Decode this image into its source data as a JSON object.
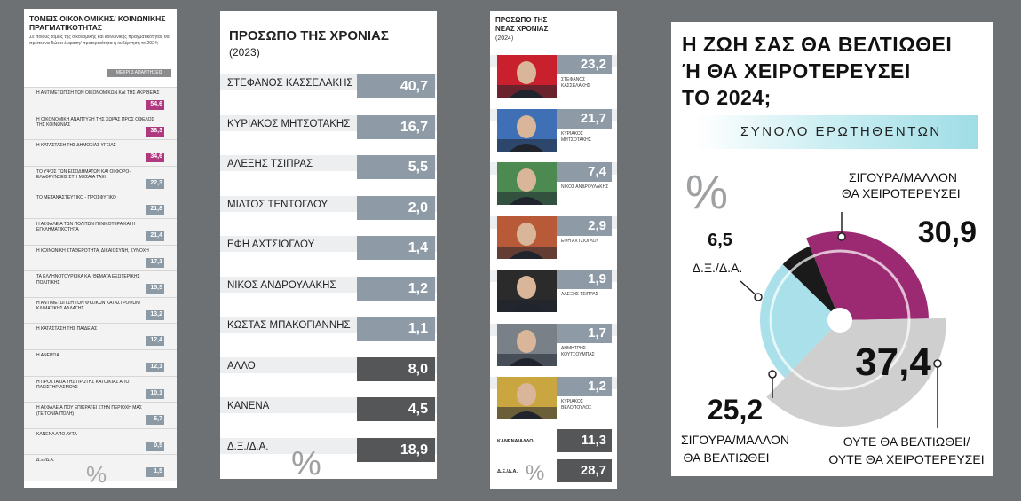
{
  "colors": {
    "magenta": "#9c2a73",
    "light_blue": "#a9e0ea",
    "gray": "#cfcfcf",
    "black": "#1a1a1a",
    "bar_blue": "#8e9ba7",
    "bar_dark": "#555658"
  },
  "panel1": {
    "title": "ΤΟΜΕΙΣ ΟΙΚΟΝΟΜΙΚΗΣ/ ΚΟΙΝΩΝΙΚΗΣ ΠΡΑΓΜΑΤΙΚΟΤΗΤΑΣ",
    "subtitle": "Σε ποιους τομείς της οικονομικής και κοινωνικής πραγματικότητας θα πρέπει να δώσει έμφαση/ προτεραιότητα η κυβέρνηση το 2024;",
    "note": "ΜΕΧΡΙ 3 ΑΠΑΝΤΗΣΕΙΣ",
    "pct": "%",
    "rows": [
      {
        "label": "Η ΑΝΤΙΜΕΤΩΠΙΣΗ ΤΩΝ ΟΙΚΟΝΟΜΙΚΩΝ ΚΑΙ ΤΗΣ ΑΚΡΙΒΕΙΑΣ",
        "value": "54,6",
        "hl": true
      },
      {
        "label": "Η ΟΙΚΟΝΟΜΙΚΗ ΑΝΑΠΤΥΞΗ ΤΗΣ ΧΩΡΑΣ ΠΡΟΣ ΟΦΕΛΟΣ ΤΗΣ ΚΟΙΝΩΝΙΑΣ",
        "value": "38,3",
        "hl": true
      },
      {
        "label": "Η ΚΑΤΑΣΤΑΣΗ ΤΗΣ ΔΗΜΟΣΙΑΣ ΥΓΕΙΑΣ",
        "value": "34,6",
        "hl": true
      },
      {
        "label": "ΤΟ ΥΨΟΣ ΤΩΝ ΕΙΣΟΔΗΜΑΤΩΝ ΚΑΙ ΟΙ ΦΟΡΟ-ΕΛΑΦΡΥΝΣΕΙΣ ΣΤΗ ΜΕΣΑΙΑ ΤΑΞΗ",
        "value": "22,3",
        "hl": false
      },
      {
        "label": "ΤΟ ΜΕΤΑΝΑΣΤΕΥΤΙΚΟ - ΠΡΟΣΦΥΓΙΚΟ",
        "value": "21,8",
        "hl": false
      },
      {
        "label": "Η ΑΣΦΑΛΕΙΑ ΤΩΝ ΠΟΛΙΤΩΝ ΓΕΝΙΚΟΤΕΡΑ ΚΑΙ Η ΕΓΚΛΗΜΑΤΙΚΟΤΗΤΑ",
        "value": "21,4",
        "hl": false
      },
      {
        "label": "Η ΚΟΙΝΩΝΙΚΗ ΣΤΑΘΕΡΟΤΗΤΑ, ΔΙΚΑΙΟΣΥΝΗ, ΣΥΝΟΧΗ",
        "value": "17,1",
        "hl": false
      },
      {
        "label": "ΤΑ ΕΛΛΗΝΟΤΟΥΡΚΙΚΑ ΚΑΙ ΘΕΜΑΤΑ ΕΞΩΤΕΡΙΚΗΣ ΠΟΛΙΤΙΚΗΣ",
        "value": "15,5",
        "hl": false
      },
      {
        "label": "Η ΑΝΤΙΜΕΤΩΠΙΣΗ ΤΩΝ ΦΥΣΙΚΩΝ ΚΑΤΑΣΤΡΟΦΩΝ/ ΚΛΙΜΑΤΙΚΗΣ ΑΛΛΑΓΗΣ",
        "value": "13,2",
        "hl": false
      },
      {
        "label": "Η ΚΑΤΑΣΤΑΣΗ ΤΗΣ ΠΑΙΔΕΙΑΣ",
        "value": "12,4",
        "hl": false
      },
      {
        "label": "Η ΑΝΕΡΓΙΑ",
        "value": "12,1",
        "hl": false
      },
      {
        "label": "Η ΠΡΟΣΤΑΣΙΑ ΤΗΣ ΠΡΩΤΗΣ ΚΑΤΟΙΚΙΑΣ ΑΠΟ ΠΛΕΙΣΤΗΡΙΑΣΜΟΥΣ",
        "value": "10,1",
        "hl": false
      },
      {
        "label": "Η ΑΣΦΑΛΕΙΑ ΠΟΥ ΕΠΙΚΡΑΤΕΙ ΣΤΗΝ ΠΕΡΙΟΧΗ ΜΑΣ (Γειτονιά-Πόλη)",
        "value": "6,7",
        "hl": false
      },
      {
        "label": "ΚΑΝΕΝΑ ΑΠΟ ΑΥΤΑ",
        "value": "0,5",
        "hl": false
      },
      {
        "label": "Δ.Ξ./Δ.Α.",
        "value": "1,5",
        "hl": false
      }
    ]
  },
  "panel2": {
    "title": "ΠΡΟΣΩΠΟ ΤΗΣ ΧΡΟΝΙΑΣ",
    "year": "(2023)",
    "pct": "%",
    "rows": [
      {
        "label": "ΣΤΕΦΑΝΟΣ ΚΑΣΣΕΛΑΚΗΣ",
        "value": "40,7",
        "dark": false
      },
      {
        "label": "ΚΥΡΙΑΚΟΣ ΜΗΤΣΟΤΑΚΗΣ",
        "value": "16,7",
        "dark": false
      },
      {
        "label": "ΑΛΕΞΗΣ ΤΣΙΠΡΑΣ",
        "value": "5,5",
        "dark": false
      },
      {
        "label": "ΜΙΛΤΟΣ ΤΕΝΤΟΓΛΟΥ",
        "value": "2,0",
        "dark": false
      },
      {
        "label": "ΕΦΗ ΑΧΤΣΙΟΓΛΟΥ",
        "value": "1,4",
        "dark": false
      },
      {
        "label": "ΝΙΚΟΣ ΑΝΔΡΟΥΛΑΚΗΣ",
        "value": "1,2",
        "dark": false
      },
      {
        "label": "ΚΩΣΤΑΣ ΜΠΑΚΟΓΙΑΝΝΗΣ",
        "value": "1,1",
        "dark": false
      },
      {
        "label": "ΑΛΛΟ",
        "value": "8,0",
        "dark": true
      },
      {
        "label": "ΚΑΝΕΝΑ",
        "value": "4,5",
        "dark": true
      },
      {
        "label": "Δ.Ξ./Δ.Α.",
        "value": "18,9",
        "dark": true
      }
    ]
  },
  "panel3": {
    "title": "ΠΡΟΣΩΠΟ ΤΗΣ ΝΕΑΣ ΧΡΟΝΙΑΣ",
    "year": "(2024)",
    "pct": "%",
    "rows": [
      {
        "name": "ΣΤΕΦΑΝΟΣ ΚΑΣΣΕΛΑΚΗΣ",
        "value": "23,2",
        "bg": "#c8202c"
      },
      {
        "name": "ΚΥΡΙΑΚΟΣ ΜΗΤΣΟΤΑΚΗΣ",
        "value": "21,7",
        "bg": "#3f6fb5"
      },
      {
        "name": "ΝΙΚΟΣ ΑΝΔΡΟΥΛΑΚΗΣ",
        "value": "7,4",
        "bg": "#4c8a52"
      },
      {
        "name": "ΕΦΗ ΑΧΤΣΙΟΓΛΟΥ",
        "value": "2,9",
        "bg": "#b85a38"
      },
      {
        "name": "ΑΛΕΞΗΣ ΤΣΙΠΡΑΣ",
        "value": "1,9",
        "bg": "#2b2b2b"
      },
      {
        "name": "ΔΗΜΗΤΡΗΣ ΚΟΥΤΣΟΥΜΠΑΣ",
        "value": "1,7",
        "bg": "#7a8088"
      },
      {
        "name": "ΚΥΡΙΑΚΟΣ ΒΕΛΟΠΟΥΛΟΣ",
        "value": "1,2",
        "bg": "#c9a640"
      }
    ],
    "bottom": [
      {
        "label": "ΚΑΝΕΝΑ/ΑΛΛΟ",
        "value": "11,3"
      },
      {
        "label": "Δ.Ξ./Δ.Α.",
        "value": "28,7"
      }
    ]
  },
  "panel4": {
    "title_lines": [
      "Η ΖΩΗ ΣΑΣ ΘΑ ΒΕΛΤΙΩΘΕΙ",
      "Ή ΘΑ ΧΕΙΡΟΤΕΡΕΥΣΕΙ",
      "ΤΟ 2024;"
    ],
    "total": "ΣΥΝΟΛΟ ΕΡΩΤΗΘΕΝΤΩΝ",
    "pct": "%"
  },
  "chart_data": [
    {
      "type": "bar",
      "title": "ΤΟΜΕΙΣ ΟΙΚΟΝΟΜΙΚΗΣ/ ΚΟΙΝΩΝΙΚΗΣ ΠΡΑΓΜΑΤΙΚΟΤΗΤΑΣ",
      "categories": [
        "Η ΑΝΤΙΜΕΤΩΠΙΣΗ ΤΩΝ ΟΙΚΟΝΟΜΙΚΩΝ ΚΑΙ ΤΗΣ ΑΚΡΙΒΕΙΑΣ",
        "Η ΟΙΚΟΝΟΜΙΚΗ ΑΝΑΠΤΥΞΗ ΤΗΣ ΧΩΡΑΣ ΠΡΟΣ ΟΦΕΛΟΣ ΤΗΣ ΚΟΙΝΩΝΙΑΣ",
        "Η ΚΑΤΑΣΤΑΣΗ ΤΗΣ ΔΗΜΟΣΙΑΣ ΥΓΕΙΑΣ",
        "ΤΟ ΥΨΟΣ ΤΩΝ ΕΙΣΟΔΗΜΑΤΩΝ ΚΑΙ ΟΙ ΦΟΡΟ-ΕΛΑΦΡΥΝΣΕΙΣ ΣΤΗ ΜΕΣΑΙΑ ΤΑΞΗ",
        "ΤΟ ΜΕΤΑΝΑΣΤΕΥΤΙΚΟ - ΠΡΟΣΦΥΓΙΚΟ",
        "Η ΑΣΦΑΛΕΙΑ ΤΩΝ ΠΟΛΙΤΩΝ ΓΕΝΙΚΟΤΕΡΑ ΚΑΙ Η ΕΓΚΛΗΜΑΤΙΚΟΤΗΤΑ",
        "Η ΚΟΙΝΩΝΙΚΗ ΣΤΑΘΕΡΟΤΗΤΑ, ΔΙΚΑΙΟΣΥΝΗ, ΣΥΝΟΧΗ",
        "ΤΑ ΕΛΛΗΝΟΤΟΥΡΚΙΚΑ ΚΑΙ ΘΕΜΑΤΑ ΕΞΩΤΕΡΙΚΗΣ ΠΟΛΙΤΙΚΗΣ",
        "Η ΑΝΤΙΜΕΤΩΠΙΣΗ ΤΩΝ ΦΥΣΙΚΩΝ ΚΑΤΑΣΤΡΟΦΩΝ/ ΚΛΙΜΑΤΙΚΗΣ ΑΛΛΑΓΗΣ",
        "Η ΚΑΤΑΣΤΑΣΗ ΤΗΣ ΠΑΙΔΕΙΑΣ",
        "Η ΑΝΕΡΓΙΑ",
        "Η ΠΡΟΣΤΑΣΙΑ ΤΗΣ ΠΡΩΤΗΣ ΚΑΤΟΙΚΙΑΣ ΑΠΟ ΠΛΕΙΣΤΗΡΙΑΣΜΟΥΣ",
        "Η ΑΣΦΑΛΕΙΑ ΠΟΥ ΕΠΙΚΡΑΤΕΙ ΣΤΗΝ ΠΕΡΙΟΧΗ ΜΑΣ (Γειτονιά-Πόλη)",
        "ΚΑΝΕΝΑ ΑΠΟ ΑΥΤΑ",
        "Δ.Ξ./Δ.Α."
      ],
      "values": [
        54.6,
        38.3,
        34.6,
        22.3,
        21.8,
        21.4,
        17.1,
        15.5,
        13.2,
        12.4,
        12.1,
        10.1,
        6.7,
        0.5,
        1.5
      ]
    },
    {
      "type": "bar",
      "title": "ΠΡΟΣΩΠΟ ΤΗΣ ΧΡΟΝΙΑΣ (2023)",
      "categories": [
        "ΣΤΕΦΑΝΟΣ ΚΑΣΣΕΛΑΚΗΣ",
        "ΚΥΡΙΑΚΟΣ ΜΗΤΣΟΤΑΚΗΣ",
        "ΑΛΕΞΗΣ ΤΣΙΠΡΑΣ",
        "ΜΙΛΤΟΣ ΤΕΝΤΟΓΛΟΥ",
        "ΕΦΗ ΑΧΤΣΙΟΓΛΟΥ",
        "ΝΙΚΟΣ ΑΝΔΡΟΥΛΑΚΗΣ",
        "ΚΩΣΤΑΣ ΜΠΑΚΟΓΙΑΝΝΗΣ",
        "ΑΛΛΟ",
        "ΚΑΝΕΝΑ",
        "Δ.Ξ./Δ.Α."
      ],
      "values": [
        40.7,
        16.7,
        5.5,
        2.0,
        1.4,
        1.2,
        1.1,
        8.0,
        4.5,
        18.9
      ]
    },
    {
      "type": "bar",
      "title": "ΠΡΟΣΩΠΟ ΤΗΣ ΝΕΑΣ ΧΡΟΝΙΑΣ (2024)",
      "categories": [
        "ΣΤΕΦΑΝΟΣ ΚΑΣΣΕΛΑΚΗΣ",
        "ΚΥΡΙΑΚΟΣ ΜΗΤΣΟΤΑΚΗΣ",
        "ΝΙΚΟΣ ΑΝΔΡΟΥΛΑΚΗΣ",
        "ΕΦΗ ΑΧΤΣΙΟΓΛΟΥ",
        "ΑΛΕΞΗΣ ΤΣΙΠΡΑΣ",
        "ΔΗΜΗΤΡΗΣ ΚΟΥΤΣΟΥΜΠΑΣ",
        "ΚΥΡΙΑΚΟΣ ΒΕΛΟΠΟΥΛΟΣ",
        "ΚΑΝΕΝΑ/ΑΛΛΟ",
        "Δ.Ξ./Δ.Α."
      ],
      "values": [
        23.2,
        21.7,
        7.4,
        2.9,
        1.9,
        1.7,
        1.2,
        11.3,
        28.7
      ]
    },
    {
      "type": "pie",
      "title": "Η ΖΩΗ ΣΑΣ ΘΑ ΒΕΛΤΙΩΘΕΙ Ή ΘΑ ΧΕΙΡΟΤΕΡΕΥΣΕΙ ΤΟ 2024;",
      "slices": [
        {
          "label": "ΣΙΓΟΥΡΑ/ΜΑΛΛΟΝ ΘΑ ΧΕΙΡΟΤΕΡΕΥΣΕΙ",
          "value": 30.9,
          "display": "30,9"
        },
        {
          "label": "ΟΥΤΕ ΘΑ ΒΕΛΤΙΩΘΕΙ/ ΟΥΤΕ ΘΑ ΧΕΙΡΟΤΕΡΕΥΣΕΙ",
          "value": 37.4,
          "display": "37,4"
        },
        {
          "label": "ΣΙΓΟΥΡΑ/ΜΑΛΛΟΝ ΘΑ ΒΕΛΤΙΩΘΕΙ",
          "value": 25.2,
          "display": "25,2"
        },
        {
          "label": "Δ.Ξ./Δ.Α.",
          "value": 6.5,
          "display": "6,5"
        }
      ]
    }
  ]
}
